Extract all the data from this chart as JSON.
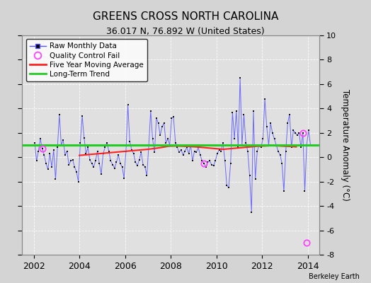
{
  "title": "GREENS CROSS NORTH CAROLINA",
  "subtitle": "36.017 N, 76.892 W (United States)",
  "ylabel": "Temperature Anomaly (°C)",
  "credit": "Berkeley Earth",
  "xlim": [
    2001.5,
    2014.5
  ],
  "ylim": [
    -8,
    10
  ],
  "yticks": [
    -8,
    -6,
    -4,
    -2,
    0,
    2,
    4,
    6,
    8,
    10
  ],
  "xticks": [
    2002,
    2004,
    2006,
    2008,
    2010,
    2012,
    2014
  ],
  "bg_color": "#d4d4d4",
  "plot_bg_color": "#e0e0e0",
  "raw_color": "#5555ff",
  "raw_marker_color": "#111111",
  "ma_color": "#ff2222",
  "trend_color": "#22cc22",
  "qc_color": "#ff44ff",
  "raw_data": [
    [
      2002.042,
      1.2
    ],
    [
      2002.125,
      -0.3
    ],
    [
      2002.208,
      0.5
    ],
    [
      2002.292,
      1.5
    ],
    [
      2002.375,
      0.7
    ],
    [
      2002.458,
      0.2
    ],
    [
      2002.542,
      -0.5
    ],
    [
      2002.625,
      -1.0
    ],
    [
      2002.708,
      0.3
    ],
    [
      2002.792,
      -0.8
    ],
    [
      2002.875,
      0.6
    ],
    [
      2002.958,
      -1.8
    ],
    [
      2003.042,
      0.8
    ],
    [
      2003.125,
      3.5
    ],
    [
      2003.208,
      1.0
    ],
    [
      2003.292,
      1.4
    ],
    [
      2003.375,
      0.2
    ],
    [
      2003.458,
      0.5
    ],
    [
      2003.542,
      -0.6
    ],
    [
      2003.625,
      -0.3
    ],
    [
      2003.708,
      -0.2
    ],
    [
      2003.792,
      -0.8
    ],
    [
      2003.875,
      -1.2
    ],
    [
      2003.958,
      -2.0
    ],
    [
      2004.042,
      1.2
    ],
    [
      2004.125,
      3.4
    ],
    [
      2004.208,
      1.6
    ],
    [
      2004.292,
      0.3
    ],
    [
      2004.375,
      0.8
    ],
    [
      2004.458,
      -0.2
    ],
    [
      2004.542,
      -0.5
    ],
    [
      2004.625,
      -0.8
    ],
    [
      2004.708,
      -0.3
    ],
    [
      2004.792,
      0.5
    ],
    [
      2004.875,
      -0.5
    ],
    [
      2004.958,
      -1.4
    ],
    [
      2005.042,
      0.3
    ],
    [
      2005.125,
      0.8
    ],
    [
      2005.208,
      1.2
    ],
    [
      2005.292,
      0.5
    ],
    [
      2005.375,
      -0.3
    ],
    [
      2005.458,
      -0.6
    ],
    [
      2005.542,
      -0.9
    ],
    [
      2005.625,
      -0.4
    ],
    [
      2005.708,
      0.2
    ],
    [
      2005.792,
      -0.5
    ],
    [
      2005.875,
      -0.8
    ],
    [
      2005.958,
      -1.7
    ],
    [
      2006.042,
      0.5
    ],
    [
      2006.125,
      4.3
    ],
    [
      2006.208,
      1.3
    ],
    [
      2006.292,
      0.6
    ],
    [
      2006.375,
      0.3
    ],
    [
      2006.458,
      -0.4
    ],
    [
      2006.542,
      -0.7
    ],
    [
      2006.625,
      -0.2
    ],
    [
      2006.708,
      0.4
    ],
    [
      2006.792,
      -0.6
    ],
    [
      2006.875,
      -0.8
    ],
    [
      2006.958,
      -1.5
    ],
    [
      2007.042,
      1.0
    ],
    [
      2007.125,
      3.8
    ],
    [
      2007.208,
      1.5
    ],
    [
      2007.292,
      0.4
    ],
    [
      2007.375,
      3.2
    ],
    [
      2007.458,
      2.8
    ],
    [
      2007.542,
      1.8
    ],
    [
      2007.625,
      2.5
    ],
    [
      2007.708,
      2.8
    ],
    [
      2007.792,
      1.2
    ],
    [
      2007.875,
      1.5
    ],
    [
      2007.958,
      1.0
    ],
    [
      2008.042,
      3.2
    ],
    [
      2008.125,
      3.3
    ],
    [
      2008.208,
      1.2
    ],
    [
      2008.292,
      0.8
    ],
    [
      2008.375,
      0.4
    ],
    [
      2008.458,
      0.6
    ],
    [
      2008.542,
      0.2
    ],
    [
      2008.625,
      0.5
    ],
    [
      2008.708,
      0.8
    ],
    [
      2008.792,
      0.3
    ],
    [
      2008.875,
      1.0
    ],
    [
      2008.958,
      -0.3
    ],
    [
      2009.042,
      0.5
    ],
    [
      2009.125,
      0.4
    ],
    [
      2009.208,
      0.8
    ],
    [
      2009.292,
      0.2
    ],
    [
      2009.375,
      -0.3
    ],
    [
      2009.458,
      -0.5
    ],
    [
      2009.542,
      -0.8
    ],
    [
      2009.625,
      -0.4
    ],
    [
      2009.708,
      -0.3
    ],
    [
      2009.792,
      -0.6
    ],
    [
      2009.875,
      -0.7
    ],
    [
      2009.958,
      -0.3
    ],
    [
      2010.042,
      0.3
    ],
    [
      2010.125,
      0.6
    ],
    [
      2010.208,
      0.5
    ],
    [
      2010.292,
      1.2
    ],
    [
      2010.375,
      -0.3
    ],
    [
      2010.458,
      -2.3
    ],
    [
      2010.542,
      -2.5
    ],
    [
      2010.625,
      -0.5
    ],
    [
      2010.708,
      3.7
    ],
    [
      2010.792,
      1.5
    ],
    [
      2010.875,
      3.8
    ],
    [
      2010.958,
      0.8
    ],
    [
      2011.042,
      6.5
    ],
    [
      2011.125,
      1.0
    ],
    [
      2011.208,
      3.5
    ],
    [
      2011.292,
      1.2
    ],
    [
      2011.375,
      0.5
    ],
    [
      2011.458,
      -1.5
    ],
    [
      2011.542,
      -4.5
    ],
    [
      2011.625,
      3.8
    ],
    [
      2011.708,
      -1.8
    ],
    [
      2011.792,
      0.5
    ],
    [
      2011.875,
      1.0
    ],
    [
      2011.958,
      0.8
    ],
    [
      2012.042,
      1.5
    ],
    [
      2012.125,
      4.8
    ],
    [
      2012.208,
      2.5
    ],
    [
      2012.292,
      1.0
    ],
    [
      2012.375,
      2.8
    ],
    [
      2012.458,
      2.0
    ],
    [
      2012.542,
      1.5
    ],
    [
      2012.625,
      1.0
    ],
    [
      2012.708,
      0.5
    ],
    [
      2012.792,
      0.2
    ],
    [
      2012.875,
      -0.5
    ],
    [
      2012.958,
      -2.8
    ],
    [
      2013.042,
      0.5
    ],
    [
      2013.125,
      2.8
    ],
    [
      2013.208,
      3.5
    ],
    [
      2013.292,
      0.8
    ],
    [
      2013.375,
      2.2
    ],
    [
      2013.458,
      2.0
    ],
    [
      2013.542,
      1.8
    ],
    [
      2013.625,
      2.0
    ],
    [
      2013.708,
      0.8
    ],
    [
      2013.792,
      2.0
    ],
    [
      2013.875,
      -2.8
    ],
    [
      2013.958,
      1.0
    ],
    [
      2014.042,
      2.2
    ],
    [
      2014.125,
      1.0
    ]
  ],
  "qc_fail_points": [
    [
      2002.375,
      0.7
    ],
    [
      2009.458,
      -0.5
    ],
    [
      2013.792,
      2.0
    ],
    [
      2013.958,
      -7.0
    ]
  ],
  "moving_avg": [
    [
      2004.0,
      0.15
    ],
    [
      2004.3,
      0.2
    ],
    [
      2004.6,
      0.25
    ],
    [
      2004.9,
      0.3
    ],
    [
      2005.2,
      0.35
    ],
    [
      2005.5,
      0.4
    ],
    [
      2005.8,
      0.45
    ],
    [
      2006.1,
      0.5
    ],
    [
      2006.4,
      0.55
    ],
    [
      2006.7,
      0.6
    ],
    [
      2007.0,
      0.65
    ],
    [
      2007.3,
      0.72
    ],
    [
      2007.6,
      0.8
    ],
    [
      2007.9,
      0.9
    ],
    [
      2008.2,
      0.92
    ],
    [
      2008.5,
      0.9
    ],
    [
      2008.8,
      0.88
    ],
    [
      2009.1,
      0.85
    ],
    [
      2009.4,
      0.8
    ],
    [
      2009.7,
      0.75
    ],
    [
      2010.0,
      0.7
    ],
    [
      2010.3,
      0.65
    ],
    [
      2010.6,
      0.7
    ],
    [
      2010.9,
      0.75
    ],
    [
      2011.2,
      0.8
    ],
    [
      2011.5,
      0.85
    ],
    [
      2011.8,
      0.9
    ],
    [
      2012.1,
      0.92
    ],
    [
      2012.4,
      0.95
    ],
    [
      2012.7,
      0.93
    ],
    [
      2013.0,
      0.9
    ],
    [
      2013.3,
      0.88
    ],
    [
      2013.5,
      0.85
    ]
  ],
  "trend_x": [
    2001.5,
    2014.5
  ],
  "trend_y": [
    1.0,
    1.0
  ]
}
